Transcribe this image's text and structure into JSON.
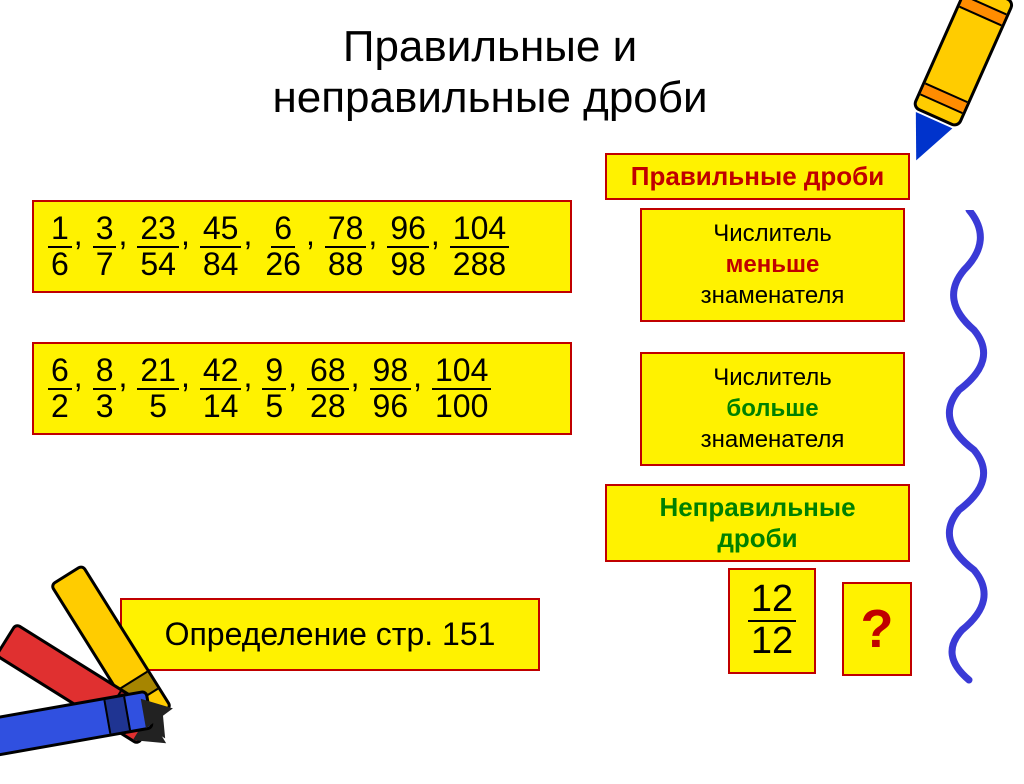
{
  "title": "Правильные и\nнеправильные дроби",
  "labels": {
    "proper": "Правильные дроби",
    "improper": "Неправильные дроби"
  },
  "fractions_proper": [
    {
      "n": "1",
      "d": "6"
    },
    {
      "n": "3",
      "d": "7"
    },
    {
      "n": "23",
      "d": "54"
    },
    {
      "n": "45",
      "d": "84"
    },
    {
      "n": "6",
      "d": "26"
    },
    {
      "n": "78",
      "d": "88"
    },
    {
      "n": "96",
      "d": "98"
    },
    {
      "n": "104",
      "d": "288"
    }
  ],
  "fractions_improper": [
    {
      "n": "6",
      "d": "2"
    },
    {
      "n": "8",
      "d": "3"
    },
    {
      "n": "21",
      "d": "5"
    },
    {
      "n": "42",
      "d": "14"
    },
    {
      "n": "9",
      "d": "5"
    },
    {
      "n": "68",
      "d": "28"
    },
    {
      "n": "98",
      "d": "96"
    },
    {
      "n": "104",
      "d": "100"
    }
  ],
  "desc_proper": {
    "line1": "Числитель",
    "accent": "меньше",
    "line3": "знаменателя"
  },
  "desc_improper": {
    "line1": "Числитель",
    "accent": "больше",
    "line3": "знаменателя"
  },
  "definition_ref": "Определение стр. 151",
  "example_frac": {
    "n": "12",
    "d": "12"
  },
  "question_mark": "?",
  "colors": {
    "box_bg": "#fff200",
    "box_border": "#c00000",
    "accent_red": "#c00000",
    "accent_green": "#008000",
    "squiggle": "#3a3ad6"
  }
}
